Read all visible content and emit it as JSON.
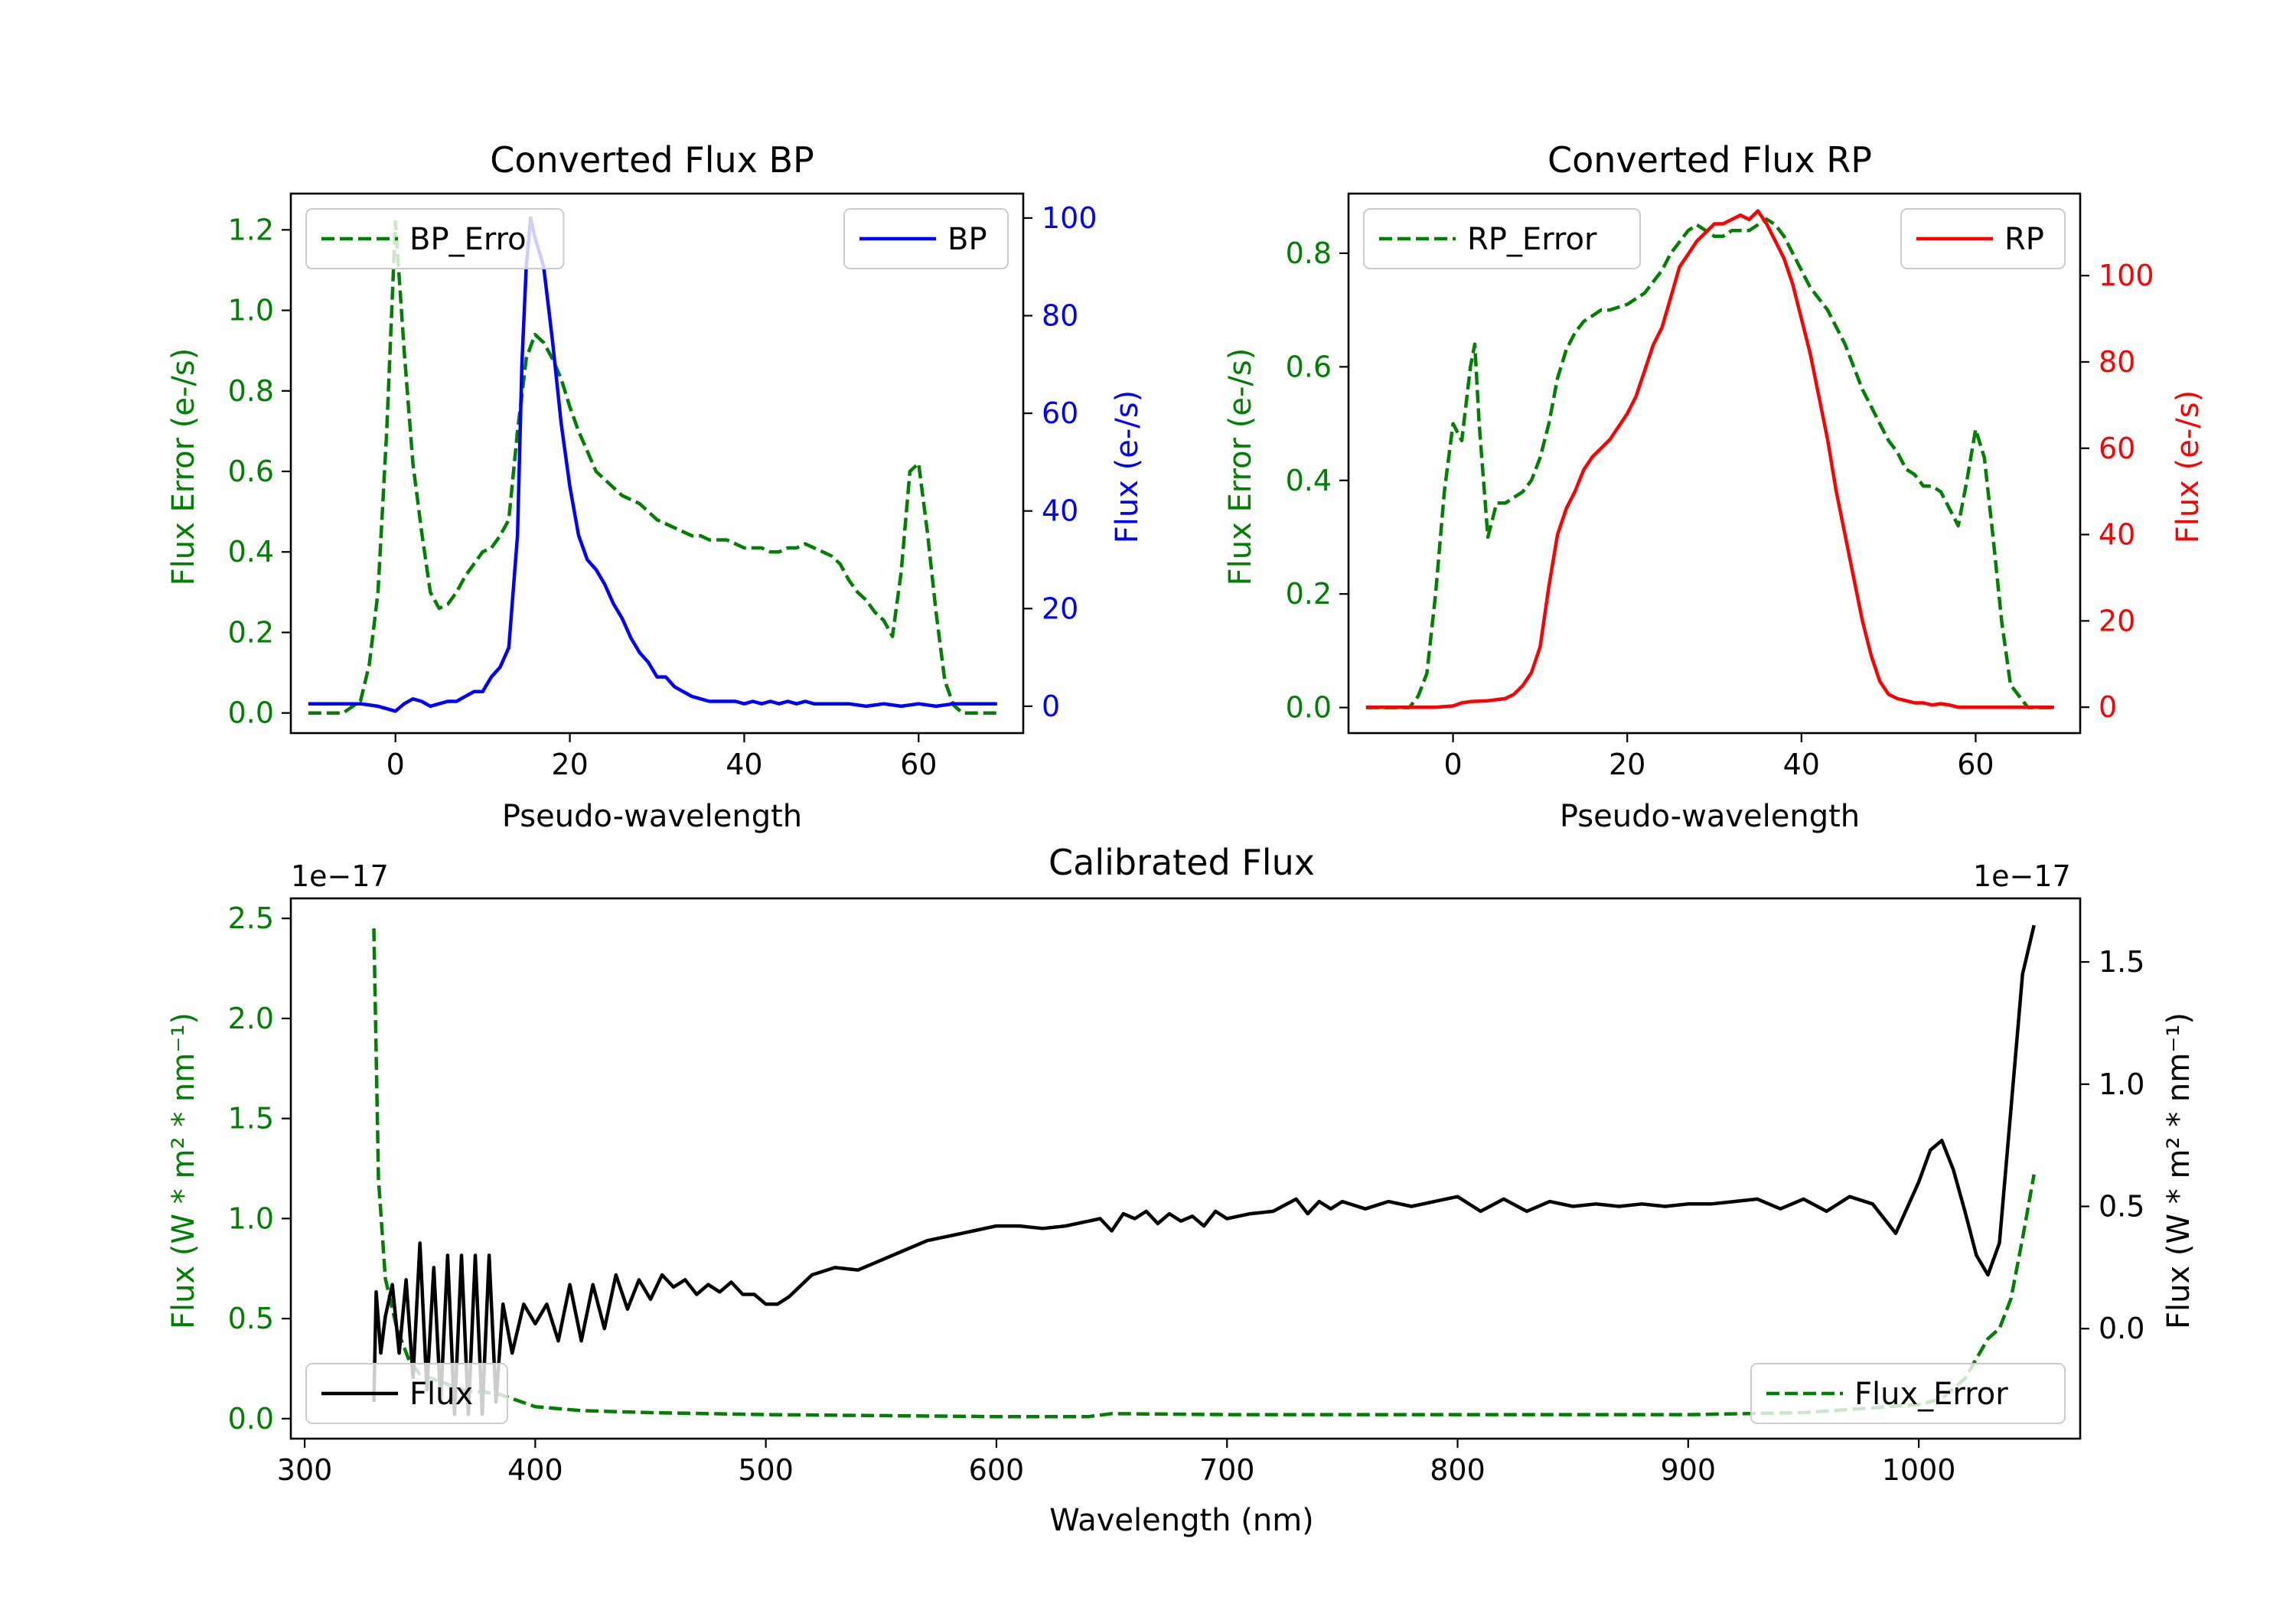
{
  "chart_data": [
    {
      "id": "bp",
      "type": "line",
      "title": "Converted Flux BP",
      "xlabel": "Pseudo-wavelength",
      "xlim": [
        -12,
        72
      ],
      "xticks": [
        0,
        20,
        40,
        60
      ],
      "left_axis": {
        "label": "Flux Error (e-/s)",
        "color": "#008000",
        "ylim": [
          -0.05,
          1.29
        ],
        "ticks": [
          0.0,
          0.2,
          0.4,
          0.6,
          0.8,
          1.0,
          1.2
        ],
        "tick_labels": [
          "0.0",
          "0.2",
          "0.4",
          "0.6",
          "0.8",
          "1.0",
          "1.2"
        ]
      },
      "right_axis": {
        "label": "Flux (e-/s)",
        "color": "#0000ff",
        "ylim": [
          -5.5,
          105
        ],
        "ticks": [
          0,
          20,
          40,
          60,
          80,
          100
        ],
        "tick_labels": [
          "0",
          "20",
          "40",
          "60",
          "80",
          "100"
        ]
      },
      "series": [
        {
          "name": "BP_Error",
          "axis": "left",
          "color": "#008000",
          "dash": true,
          "x": [
            -10,
            -6,
            -4,
            -3,
            -2,
            -1,
            0,
            1,
            2,
            3,
            4,
            5,
            6,
            7,
            8,
            9,
            10,
            11,
            12,
            13,
            14,
            15,
            16,
            17,
            18,
            19,
            20,
            21,
            22,
            23,
            24,
            25,
            26,
            27,
            28,
            29,
            30,
            31,
            32,
            33,
            34,
            35,
            36,
            37,
            38,
            39,
            40,
            41,
            42,
            43,
            44,
            45,
            46,
            47,
            48,
            49,
            50,
            51,
            52,
            53,
            54,
            55,
            56,
            57,
            58,
            59,
            60,
            61,
            62,
            63,
            64,
            65,
            66,
            67,
            68,
            69
          ],
          "values": [
            0.0,
            0.0,
            0.03,
            0.12,
            0.3,
            0.7,
            1.22,
            0.9,
            0.62,
            0.45,
            0.3,
            0.26,
            0.27,
            0.3,
            0.34,
            0.37,
            0.4,
            0.41,
            0.44,
            0.48,
            0.7,
            0.88,
            0.94,
            0.92,
            0.88,
            0.83,
            0.76,
            0.7,
            0.65,
            0.6,
            0.58,
            0.56,
            0.54,
            0.53,
            0.52,
            0.5,
            0.48,
            0.47,
            0.46,
            0.45,
            0.44,
            0.44,
            0.43,
            0.43,
            0.43,
            0.42,
            0.41,
            0.41,
            0.41,
            0.4,
            0.4,
            0.41,
            0.41,
            0.42,
            0.41,
            0.4,
            0.39,
            0.37,
            0.33,
            0.3,
            0.28,
            0.25,
            0.23,
            0.19,
            0.35,
            0.6,
            0.62,
            0.45,
            0.25,
            0.08,
            0.02,
            0.0,
            0.0,
            0.0,
            0.0,
            0.0
          ]
        },
        {
          "name": "BP",
          "axis": "right",
          "color": "#0000ff",
          "dash": false,
          "x": [
            -10,
            -6,
            -4,
            -2,
            0,
            1,
            2,
            3,
            4,
            5,
            6,
            7,
            8,
            9,
            10,
            11,
            12,
            13,
            14,
            14.5,
            15,
            15.5,
            16,
            17,
            18,
            19,
            20,
            21,
            22,
            23,
            24,
            25,
            26,
            27,
            28,
            29,
            30,
            31,
            32,
            33,
            34,
            35,
            36,
            37,
            38,
            39,
            40,
            41,
            42,
            43,
            44,
            45,
            46,
            47,
            48,
            50,
            52,
            54,
            56,
            58,
            60,
            62,
            64,
            66,
            68,
            69
          ],
          "values": [
            0.5,
            0.5,
            0.5,
            0.0,
            -1.0,
            0.5,
            1.5,
            1.0,
            0.0,
            0.5,
            1.0,
            1.0,
            2.0,
            3.0,
            3.0,
            6.0,
            8.0,
            12.0,
            35.0,
            70.0,
            90.0,
            100.0,
            96.0,
            90.0,
            75.0,
            58.0,
            45.0,
            35.0,
            30.0,
            28.0,
            25.0,
            21.0,
            18.0,
            14.0,
            11.0,
            9.0,
            6.0,
            6.0,
            4.0,
            3.0,
            2.0,
            1.5,
            1.0,
            1.0,
            1.0,
            1.0,
            0.5,
            1.0,
            0.5,
            1.0,
            0.5,
            1.0,
            0.5,
            1.0,
            0.5,
            0.5,
            0.5,
            0.0,
            0.5,
            0.0,
            0.5,
            0.0,
            0.5,
            0.5,
            0.5,
            0.5
          ]
        }
      ],
      "legends": [
        {
          "series": "BP_Error",
          "label": "BP_Erro",
          "position": "upper-left"
        },
        {
          "series": "BP",
          "label": "BP",
          "position": "upper-right"
        }
      ]
    },
    {
      "id": "rp",
      "type": "line",
      "title": "Converted Flux RP",
      "xlabel": "Pseudo-wavelength",
      "xlim": [
        -12,
        72
      ],
      "xticks": [
        0,
        20,
        40,
        60
      ],
      "left_axis": {
        "label": "Flux Error (e-/s)",
        "color": "#008000",
        "ylim": [
          -0.045,
          0.905
        ],
        "ticks": [
          0.0,
          0.2,
          0.4,
          0.6,
          0.8
        ],
        "tick_labels": [
          "0.0",
          "0.2",
          "0.4",
          "0.6",
          "0.8"
        ]
      },
      "right_axis": {
        "label": "Flux (e-/s)",
        "color": "#ff0000",
        "ylim": [
          -6,
          119
        ],
        "ticks": [
          0,
          20,
          40,
          60,
          80,
          100
        ],
        "tick_labels": [
          "0",
          "20",
          "40",
          "60",
          "80",
          "100"
        ]
      },
      "series": [
        {
          "name": "RP_Error",
          "axis": "left",
          "color": "#008000",
          "dash": true,
          "x": [
            -10,
            -5,
            -4,
            -3,
            -2,
            -1,
            0,
            1,
            2,
            2.5,
            3,
            4,
            5,
            6,
            7,
            8,
            9,
            10,
            11,
            12,
            13,
            14,
            15,
            16,
            17,
            18,
            20,
            22,
            23,
            24,
            25,
            26,
            27,
            28,
            29,
            30,
            31,
            32,
            33,
            34,
            35,
            36,
            37,
            38,
            39,
            40,
            41,
            42,
            43,
            44,
            45,
            46,
            47,
            48,
            49,
            50,
            51,
            52,
            53,
            54,
            55,
            56,
            57,
            58,
            59,
            60,
            61,
            62,
            63,
            64,
            66,
            69
          ],
          "values": [
            0.0,
            0.0,
            0.02,
            0.06,
            0.2,
            0.38,
            0.5,
            0.47,
            0.6,
            0.64,
            0.5,
            0.3,
            0.36,
            0.36,
            0.37,
            0.38,
            0.4,
            0.44,
            0.5,
            0.58,
            0.63,
            0.66,
            0.68,
            0.69,
            0.7,
            0.7,
            0.71,
            0.73,
            0.75,
            0.77,
            0.8,
            0.82,
            0.84,
            0.85,
            0.84,
            0.83,
            0.83,
            0.84,
            0.84,
            0.84,
            0.85,
            0.86,
            0.85,
            0.83,
            0.8,
            0.77,
            0.74,
            0.72,
            0.7,
            0.67,
            0.64,
            0.6,
            0.56,
            0.53,
            0.5,
            0.47,
            0.45,
            0.42,
            0.41,
            0.39,
            0.39,
            0.38,
            0.35,
            0.32,
            0.4,
            0.49,
            0.44,
            0.3,
            0.15,
            0.04,
            0.0,
            0.0
          ]
        },
        {
          "name": "RP",
          "axis": "right",
          "color": "#ff0000",
          "dash": false,
          "x": [
            -10,
            -4,
            -2,
            0,
            1,
            2,
            4,
            6,
            7,
            8,
            9,
            10,
            11,
            12,
            13,
            14,
            15,
            16,
            17,
            18,
            19,
            20,
            21,
            22,
            23,
            24,
            25,
            26,
            27,
            28,
            29,
            30,
            31,
            32,
            33,
            34,
            35,
            36,
            37,
            38,
            39,
            40,
            41,
            42,
            43,
            44,
            45,
            46,
            47,
            48,
            49,
            50,
            51,
            52,
            53,
            54,
            55,
            56,
            57,
            58,
            60,
            62,
            64,
            66,
            68,
            69
          ],
          "values": [
            0,
            0,
            0,
            0.3,
            1,
            1.3,
            1.5,
            2,
            3,
            5,
            8,
            14,
            28,
            40,
            46,
            50,
            55,
            58,
            60,
            62,
            65,
            68,
            72,
            78,
            84,
            88,
            95,
            102,
            105,
            108,
            110,
            112,
            112,
            113,
            114,
            113,
            115,
            112,
            108,
            104,
            98,
            90,
            82,
            72,
            62,
            50,
            40,
            30,
            20,
            12,
            6,
            3,
            2,
            1.5,
            1,
            1,
            0.5,
            0.8,
            0.5,
            0,
            0,
            0,
            0,
            0,
            0,
            0
          ]
        }
      ],
      "legends": [
        {
          "series": "RP_Error",
          "label": "RP_Error",
          "position": "upper-left"
        },
        {
          "series": "RP",
          "label": "RP",
          "position": "upper-right"
        }
      ]
    },
    {
      "id": "cal",
      "type": "line",
      "title": "Calibrated Flux",
      "xlabel": "Wavelength (nm)",
      "xlim": [
        294,
        1070
      ],
      "xticks": [
        300,
        400,
        500,
        600,
        700,
        800,
        900,
        1000
      ],
      "left_axis": {
        "label": "Flux (W * m² * nm⁻¹)",
        "color": "#008000",
        "ylim": [
          -0.1,
          2.6
        ],
        "ticks": [
          0.0,
          0.5,
          1.0,
          1.5,
          2.0,
          2.5
        ],
        "tick_labels": [
          "0.0",
          "0.5",
          "1.0",
          "1.5",
          "2.0",
          "2.5"
        ],
        "offset_text": "1e−17"
      },
      "right_axis": {
        "label": "Flux (W * m² * nm⁻¹)",
        "color": "#000000",
        "ylim": [
          -0.45,
          1.76
        ],
        "ticks": [
          0.0,
          0.5,
          1.0,
          1.5
        ],
        "tick_labels": [
          "0.0",
          "0.5",
          "1.0",
          "1.5"
        ],
        "offset_text": "1e−17"
      },
      "series": [
        {
          "name": "Flux_Error",
          "axis": "left",
          "color": "#008000",
          "dash": true,
          "x": [
            330,
            332,
            335,
            340,
            345,
            350,
            360,
            370,
            380,
            385,
            390,
            400,
            420,
            450,
            500,
            550,
            600,
            640,
            650,
            700,
            750,
            800,
            850,
            900,
            950,
            1000,
            1010,
            1020,
            1030,
            1035,
            1040,
            1045,
            1050
          ],
          "values": [
            2.45,
            1.2,
            0.7,
            0.45,
            0.3,
            0.22,
            0.18,
            0.14,
            0.13,
            0.12,
            0.1,
            0.06,
            0.04,
            0.03,
            0.02,
            0.015,
            0.01,
            0.01,
            0.025,
            0.02,
            0.02,
            0.02,
            0.02,
            0.02,
            0.03,
            0.07,
            0.1,
            0.2,
            0.4,
            0.45,
            0.6,
            0.9,
            1.22
          ]
        },
        {
          "name": "Flux",
          "axis": "right",
          "color": "#000000",
          "dash": false,
          "x": [
            330,
            331,
            333,
            335,
            338,
            341,
            344,
            347,
            350,
            353,
            356,
            359,
            362,
            365,
            368,
            371,
            374,
            377,
            380,
            383,
            386,
            390,
            395,
            400,
            405,
            410,
            415,
            420,
            425,
            430,
            435,
            440,
            445,
            450,
            455,
            460,
            465,
            470,
            475,
            480,
            485,
            490,
            495,
            500,
            505,
            510,
            520,
            530,
            540,
            550,
            560,
            570,
            580,
            590,
            600,
            610,
            620,
            630,
            640,
            645,
            650,
            655,
            660,
            665,
            670,
            675,
            680,
            685,
            690,
            695,
            700,
            710,
            720,
            730,
            735,
            740,
            745,
            750,
            760,
            770,
            780,
            790,
            800,
            810,
            820,
            830,
            840,
            850,
            860,
            870,
            880,
            890,
            900,
            910,
            920,
            930,
            940,
            950,
            960,
            970,
            980,
            990,
            1000,
            1005,
            1010,
            1015,
            1020,
            1025,
            1030,
            1035,
            1040,
            1045,
            1050
          ],
          "values": [
            -0.3,
            0.15,
            -0.1,
            0.05,
            0.18,
            -0.1,
            0.2,
            -0.2,
            0.35,
            -0.25,
            0.25,
            -0.3,
            0.3,
            -0.35,
            0.3,
            -0.35,
            0.3,
            -0.35,
            0.3,
            -0.3,
            0.1,
            -0.1,
            0.1,
            0.02,
            0.1,
            -0.05,
            0.18,
            -0.05,
            0.18,
            0.0,
            0.22,
            0.08,
            0.2,
            0.12,
            0.22,
            0.17,
            0.2,
            0.14,
            0.18,
            0.15,
            0.19,
            0.14,
            0.14,
            0.1,
            0.1,
            0.13,
            0.22,
            0.25,
            0.24,
            0.28,
            0.32,
            0.36,
            0.38,
            0.4,
            0.42,
            0.42,
            0.41,
            0.42,
            0.44,
            0.45,
            0.4,
            0.47,
            0.45,
            0.48,
            0.43,
            0.47,
            0.44,
            0.46,
            0.42,
            0.48,
            0.45,
            0.47,
            0.48,
            0.53,
            0.47,
            0.52,
            0.49,
            0.52,
            0.49,
            0.52,
            0.5,
            0.52,
            0.54,
            0.48,
            0.53,
            0.48,
            0.52,
            0.5,
            0.51,
            0.5,
            0.51,
            0.5,
            0.51,
            0.51,
            0.52,
            0.53,
            0.49,
            0.53,
            0.48,
            0.54,
            0.51,
            0.39,
            0.6,
            0.73,
            0.77,
            0.65,
            0.48,
            0.3,
            0.22,
            0.35,
            0.9,
            1.45,
            1.65
          ]
        }
      ],
      "legends": [
        {
          "series": "Flux",
          "label": "Flux",
          "position": "lower-left"
        },
        {
          "series": "Flux_Error",
          "label": "Flux_Error",
          "position": "lower-right"
        }
      ]
    }
  ]
}
